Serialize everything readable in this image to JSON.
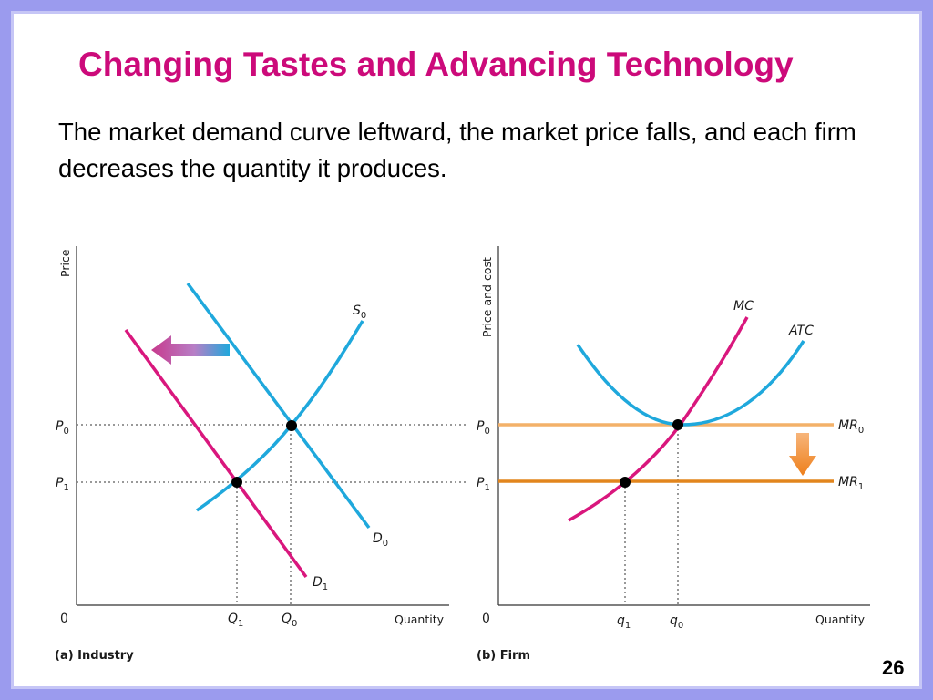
{
  "slide": {
    "title": "Changing Tastes and Advancing Technology",
    "body": "The market demand curve leftward, the market price falls, and each firm decreases the quantity it produces.",
    "page_number": "26"
  },
  "colors": {
    "title": "#cc0a7a",
    "demand_curve": "#1fa8dc",
    "shifted_curve": "#d9177d",
    "mr0_line": "#f3b169",
    "mr1_line": "#e2851d",
    "arrow_left": "#cd3d8f",
    "arrow_down": "#f08a25"
  },
  "icons": {
    "shift_left_arrow": "arrow-left-icon",
    "shift_down_arrow": "arrow-down-icon"
  },
  "industry_panel": {
    "caption": "(a) Industry",
    "y_axis_title": "Price",
    "x_axis_title": "Quantity",
    "origin": "0",
    "ticks": {
      "p0": {
        "main": "P",
        "sub": "0"
      },
      "p1": {
        "main": "P",
        "sub": "1"
      },
      "q0": {
        "main": "Q",
        "sub": "0"
      },
      "q1": {
        "main": "Q",
        "sub": "1"
      }
    },
    "curves": {
      "s0": {
        "main": "S",
        "sub": "0"
      },
      "d0": {
        "main": "D",
        "sub": "0"
      },
      "d1": {
        "main": "D",
        "sub": "1"
      }
    }
  },
  "firm_panel": {
    "caption": "(b) Firm",
    "y_axis_title": "Price and cost",
    "x_axis_title": "Quantity",
    "origin": "0",
    "ticks": {
      "p0": {
        "main": "P",
        "sub": "0"
      },
      "p1": {
        "main": "P",
        "sub": "1"
      },
      "q0": {
        "main": "q",
        "sub": "0"
      },
      "q1": {
        "main": "q",
        "sub": "1"
      }
    },
    "curves": {
      "mc": "MC",
      "atc": "ATC",
      "mr0": {
        "main": "MR",
        "sub": "0"
      },
      "mr1": {
        "main": "MR",
        "sub": "1"
      }
    }
  }
}
